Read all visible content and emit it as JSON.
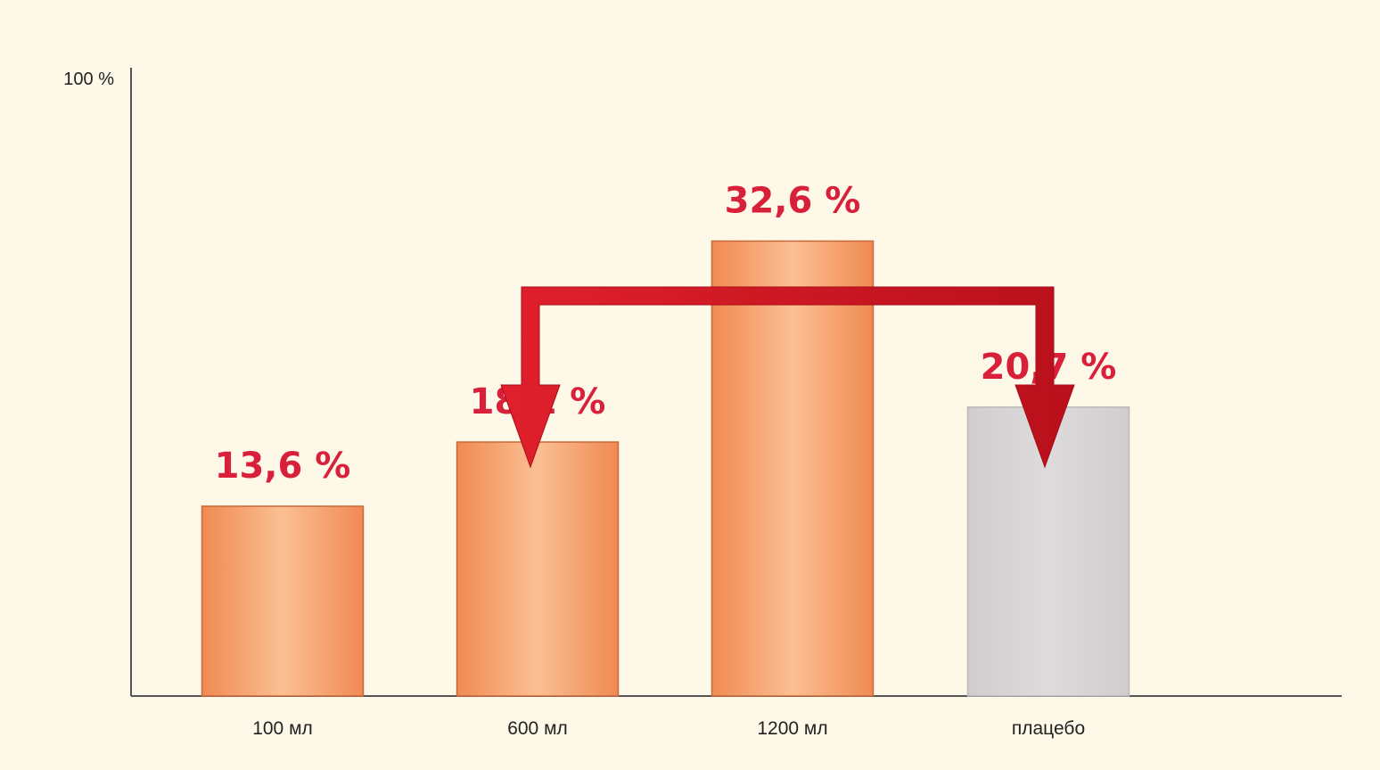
{
  "chart_data": {
    "type": "bar",
    "categories": [
      "100 мл",
      "600 мл",
      "1200 мл",
      "плацебо"
    ],
    "values": [
      13.6,
      18.2,
      32.6,
      20.7
    ],
    "value_labels": [
      "13,6 %",
      "18,2 %",
      "32,6 %",
      "20,7 %"
    ],
    "y_tick_labels": [
      "100 %"
    ],
    "ylim": [
      0,
      100
    ],
    "grid": false,
    "legend": "none",
    "annotations": [
      {
        "type": "bracket-arrow",
        "from_category": "600 мл",
        "to_category": "плацебо"
      }
    ],
    "colors": {
      "bar": "#f08a52",
      "bar_light": "#fbbf93",
      "placebo_bar": "#dddbdb",
      "value_text": "#d8203a",
      "arrow": "#e0202c",
      "axis": "#555555",
      "background": "#fdf8e8"
    }
  }
}
